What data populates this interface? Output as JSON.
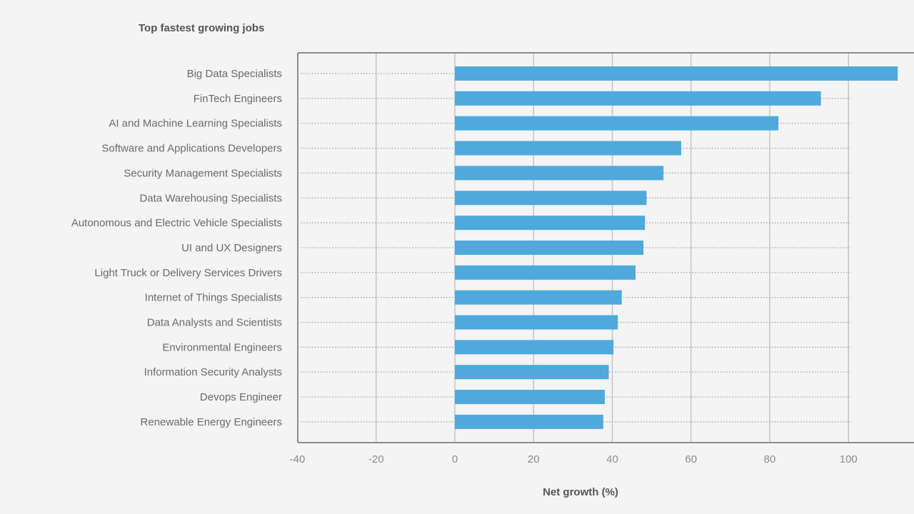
{
  "chart_data": {
    "type": "bar",
    "orientation": "horizontal",
    "title": "Top fastest growing jobs",
    "xlabel": "Net growth (%)",
    "ylabel": "",
    "xlim": [
      -40,
      113
    ],
    "xticks": [
      -40,
      -20,
      0,
      20,
      40,
      60,
      80,
      100
    ],
    "grid": true,
    "colors": {
      "bar": "#4fa9dc",
      "axis": "#8c8c8c",
      "grid": "#c4c4c4",
      "guide": "#9a9a9a"
    },
    "categories": [
      "Big Data Specialists",
      "FinTech Engineers",
      "AI and Machine Learning Specialists",
      "Software and Applications Developers",
      "Security Management Specialists",
      "Data Warehousing Specialists",
      "Autonomous and Electric Vehicle Specialists",
      "UI and UX Designers",
      "Light Truck or Delivery Services Drivers",
      "Internet of Things Specialists",
      "Data Analysts and Scientists",
      "Environmental Engineers",
      "Information Security Analysts",
      "Devops Engineer",
      "Renewable Energy Engineers"
    ],
    "values": [
      112.5,
      93,
      82.2,
      57.5,
      53,
      48.7,
      48.3,
      47.9,
      45.9,
      42.4,
      41.4,
      40.3,
      39.1,
      38.1,
      37.7
    ]
  }
}
